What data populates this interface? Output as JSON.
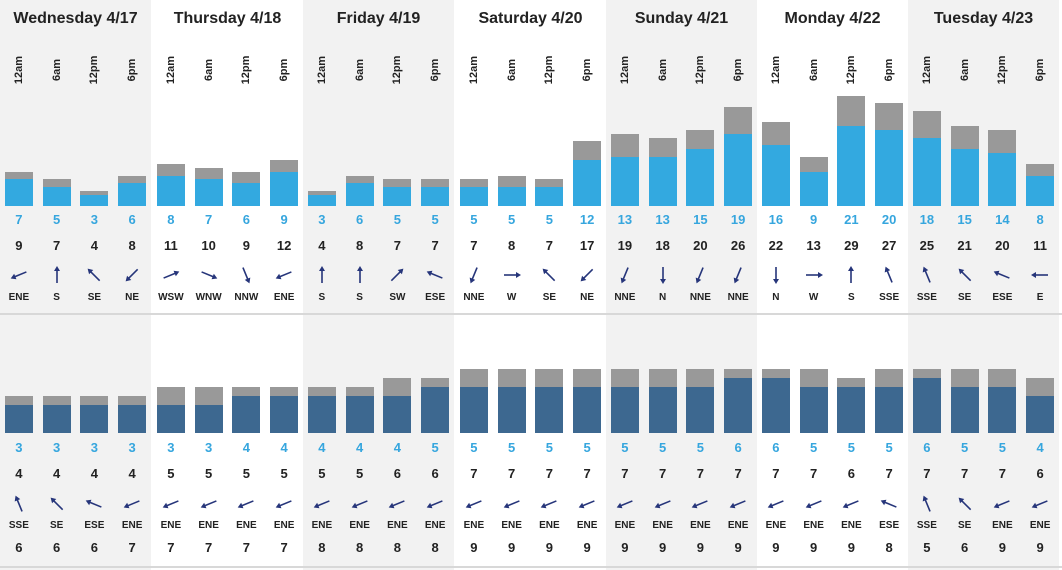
{
  "colors": {
    "shade": "#f2f2f2",
    "gray_bar": "#999999",
    "wind_bar": "#33a9e0",
    "swell_bar": "#3d6890",
    "blue_text": "#36a6de",
    "arrow": "#26357a"
  },
  "days": [
    {
      "label": "Wednesday 4/17",
      "shaded": true
    },
    {
      "label": "Thursday 4/18",
      "shaded": false
    },
    {
      "label": "Friday 4/19",
      "shaded": true
    },
    {
      "label": "Saturday 4/20",
      "shaded": false
    },
    {
      "label": "Sunday 4/21",
      "shaded": true
    },
    {
      "label": "Monday 4/22",
      "shaded": false
    },
    {
      "label": "Tuesday 4/23",
      "shaded": true
    }
  ],
  "hours": [
    "12am",
    "6am",
    "12pm",
    "6pm"
  ],
  "wind": {
    "speed": [
      7,
      5,
      3,
      6,
      8,
      7,
      6,
      9,
      3,
      6,
      5,
      5,
      5,
      5,
      5,
      12,
      13,
      13,
      15,
      19,
      16,
      9,
      21,
      20,
      18,
      15,
      14,
      8
    ],
    "gust": [
      9,
      7,
      4,
      8,
      11,
      10,
      9,
      12,
      4,
      8,
      7,
      7,
      7,
      8,
      7,
      17,
      19,
      18,
      20,
      26,
      22,
      13,
      29,
      27,
      25,
      21,
      20,
      11
    ],
    "direction": [
      "ENE",
      "S",
      "SE",
      "NE",
      "WSW",
      "WNW",
      "NNW",
      "ENE",
      "S",
      "S",
      "SW",
      "ESE",
      "NNE",
      "W",
      "SE",
      "NE",
      "NNE",
      "N",
      "NNE",
      "NNE",
      "N",
      "W",
      "S",
      "SSE",
      "SSE",
      "SE",
      "ESE",
      "E"
    ]
  },
  "swell": {
    "height": [
      3,
      3,
      3,
      3,
      3,
      3,
      4,
      4,
      4,
      4,
      4,
      5,
      5,
      5,
      5,
      5,
      5,
      5,
      5,
      6,
      6,
      5,
      5,
      5,
      6,
      5,
      5,
      4
    ],
    "max": [
      4,
      4,
      4,
      4,
      5,
      5,
      5,
      5,
      5,
      5,
      6,
      6,
      7,
      7,
      7,
      7,
      7,
      7,
      7,
      7,
      7,
      7,
      6,
      7,
      7,
      7,
      7,
      6
    ],
    "direction": [
      "SSE",
      "SE",
      "ESE",
      "ENE",
      "ENE",
      "ENE",
      "ENE",
      "ENE",
      "ENE",
      "ENE",
      "ENE",
      "ENE",
      "ENE",
      "ENE",
      "ENE",
      "ENE",
      "ENE",
      "ENE",
      "ENE",
      "ENE",
      "ENE",
      "ENE",
      "ENE",
      "ESE",
      "SSE",
      "SE",
      "ENE",
      "ENE"
    ],
    "period": [
      6,
      6,
      6,
      7,
      7,
      7,
      7,
      7,
      8,
      8,
      8,
      8,
      9,
      9,
      9,
      9,
      9,
      9,
      9,
      9,
      9,
      9,
      9,
      8,
      5,
      6,
      9,
      9
    ]
  }
}
